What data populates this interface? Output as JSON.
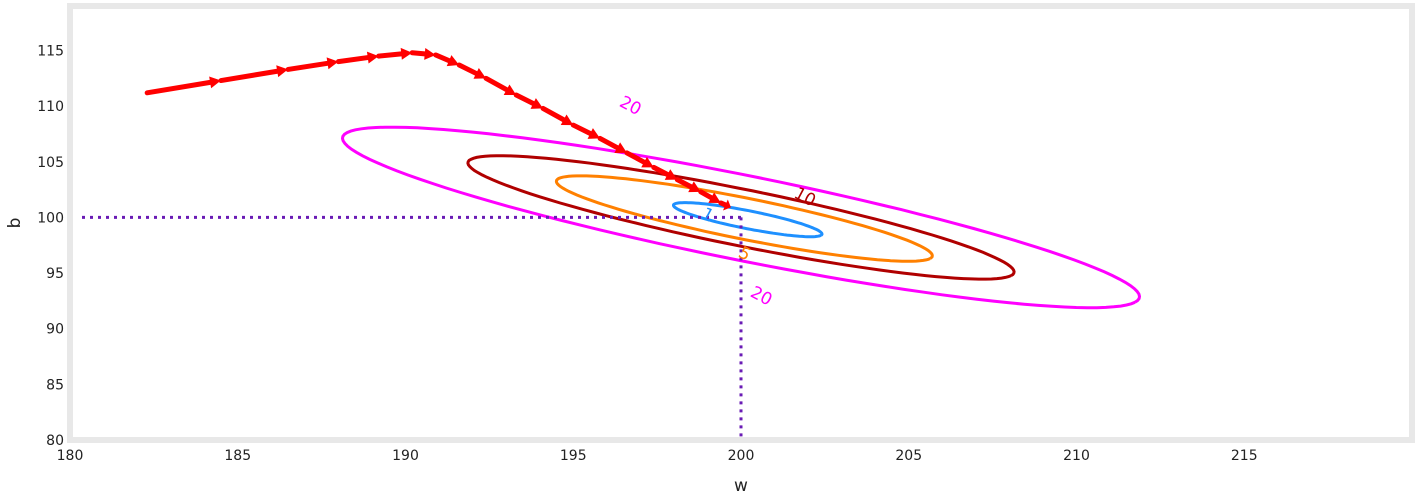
{
  "chart_data": {
    "type": "contour",
    "xlabel": "w",
    "ylabel": "b",
    "xlim": [
      180,
      220
    ],
    "ylim": [
      80,
      119
    ],
    "x_ticks": [
      "180",
      "185",
      "190",
      "195",
      "200",
      "205",
      "210",
      "215"
    ],
    "y_ticks": [
      "80",
      "85",
      "90",
      "95",
      "100",
      "105",
      "110",
      "115"
    ],
    "grid": false,
    "minimum": {
      "w": 200,
      "b": 100
    },
    "contours": [
      {
        "level": "1",
        "color": "#1e90ff",
        "center": [
          200.2,
          99.8
        ],
        "rx": 2.6,
        "ry": 0.7,
        "angle_deg": -33
      },
      {
        "level": "5",
        "color": "#ff8000",
        "center": [
          200.1,
          99.9
        ],
        "rx": 6.6,
        "ry": 1.6,
        "angle_deg": -33
      },
      {
        "level": "10",
        "color": "#b00000",
        "center": [
          200.0,
          100.0
        ],
        "rx": 9.6,
        "ry": 2.2,
        "angle_deg": -33
      },
      {
        "level": "20",
        "color": "#ff00ff",
        "center": [
          200.0,
          100.0
        ],
        "rx": 14.0,
        "ry": 3.3,
        "angle_deg": -33
      }
    ],
    "contour_labels": [
      {
        "text": "20",
        "color": "#ff00ff",
        "w": 196.7,
        "b": 110.0,
        "rot": 28
      },
      {
        "text": "10",
        "color": "#b00000",
        "w": 201.9,
        "b": 101.8,
        "rot": 28
      },
      {
        "text": "5",
        "color": "#ff8000",
        "w": 200.1,
        "b": 96.7,
        "rot": 28
      },
      {
        "text": "1",
        "color": "#1e90ff",
        "w": 199.0,
        "b": 100.2,
        "rot": 28
      },
      {
        "text": "20",
        "color": "#ff00ff",
        "w": 200.6,
        "b": 92.9,
        "rot": 28
      }
    ],
    "path_color": "#ff0000",
    "minimum_line_color": "#6a1bb5",
    "gradient_path": [
      {
        "w": 182.3,
        "b": 111.2
      },
      {
        "w": 184.5,
        "b": 112.3
      },
      {
        "w": 186.5,
        "b": 113.3
      },
      {
        "w": 188.0,
        "b": 114.0
      },
      {
        "w": 189.2,
        "b": 114.5
      },
      {
        "w": 190.2,
        "b": 114.8
      },
      {
        "w": 190.9,
        "b": 114.6
      },
      {
        "w": 191.6,
        "b": 113.7
      },
      {
        "w": 192.4,
        "b": 112.5
      },
      {
        "w": 193.3,
        "b": 111.0
      },
      {
        "w": 194.1,
        "b": 109.8
      },
      {
        "w": 195.0,
        "b": 108.3
      },
      {
        "w": 195.8,
        "b": 107.1
      },
      {
        "w": 196.6,
        "b": 105.8
      },
      {
        "w": 197.4,
        "b": 104.5
      },
      {
        "w": 198.1,
        "b": 103.4
      },
      {
        "w": 198.8,
        "b": 102.3
      },
      {
        "w": 199.4,
        "b": 101.3
      },
      {
        "w": 199.7,
        "b": 100.9
      }
    ]
  }
}
